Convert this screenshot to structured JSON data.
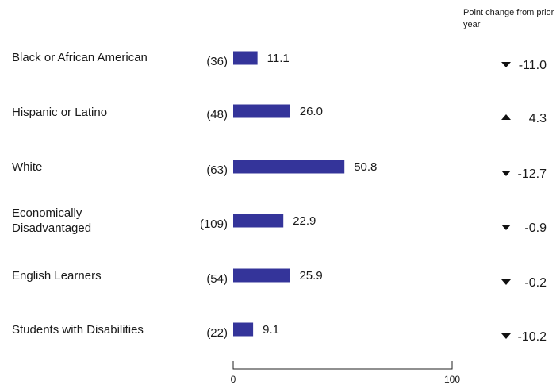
{
  "header": {
    "change_label": "Point change from prior year"
  },
  "chart_data": {
    "type": "bar",
    "orientation": "horizontal",
    "title": "",
    "xlabel": "",
    "ylabel": "",
    "xlim": [
      0,
      100
    ],
    "x_ticks": [
      "0",
      "100"
    ],
    "bar_color": "#34349a",
    "categories": [
      "Black or African American",
      "Hispanic or Latino",
      "White",
      "Economically Disadvantaged",
      "English Learners",
      "Students with Disabilities"
    ],
    "counts": [
      "(36)",
      "(48)",
      "(63)",
      "(109)",
      "(54)",
      "(22)"
    ],
    "values": [
      11.1,
      26.0,
      50.8,
      22.9,
      25.9,
      9.1
    ],
    "value_labels": [
      "11.1",
      "26.0",
      "50.8",
      "22.9",
      "25.9",
      "9.1"
    ],
    "change_directions": [
      "down",
      "up",
      "down",
      "down",
      "down",
      "down"
    ],
    "change_labels": [
      "-11.0",
      "4.3",
      "-12.7",
      "-0.9",
      "-0.2",
      "-10.2"
    ]
  }
}
